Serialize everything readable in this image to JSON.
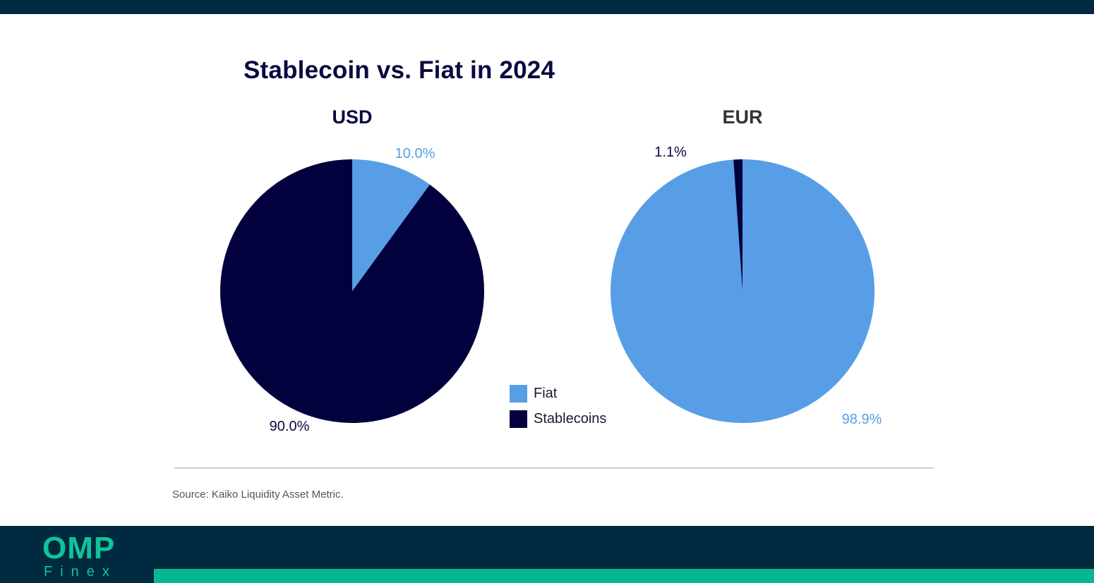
{
  "title": "Stablecoin vs. Fiat in 2024",
  "legend": [
    {
      "label": "Fiat",
      "color": "#589ee6"
    },
    {
      "label": "Stablecoins",
      "color": "#02013d"
    }
  ],
  "chart_data": [
    {
      "type": "pie",
      "title": "USD",
      "start": "12-o'clock, clockwise",
      "slices": [
        {
          "name": "Fiat",
          "value": 10.0,
          "label": "10.0%",
          "color": "#589ee6",
          "label_color": "#589ee6"
        },
        {
          "name": "Stablecoins",
          "value": 90.0,
          "label": "90.0%",
          "color": "#02013d",
          "label_color": "#0b0a3f"
        }
      ]
    },
    {
      "type": "pie",
      "title": "EUR",
      "start": "12-o'clock, clockwise",
      "slices": [
        {
          "name": "Fiat",
          "value": 98.9,
          "label": "98.9%",
          "color": "#589ee6",
          "label_color": "#589ee6"
        },
        {
          "name": "Stablecoins",
          "value": 1.1,
          "label": "1.1%",
          "color": "#02013d",
          "label_color": "#0b0a3f"
        }
      ]
    }
  ],
  "source": "Source: Kaiko Liquidity Asset Metric.",
  "brand": {
    "name": "OMP",
    "sub": "Finex",
    "color": "#10c49a"
  }
}
